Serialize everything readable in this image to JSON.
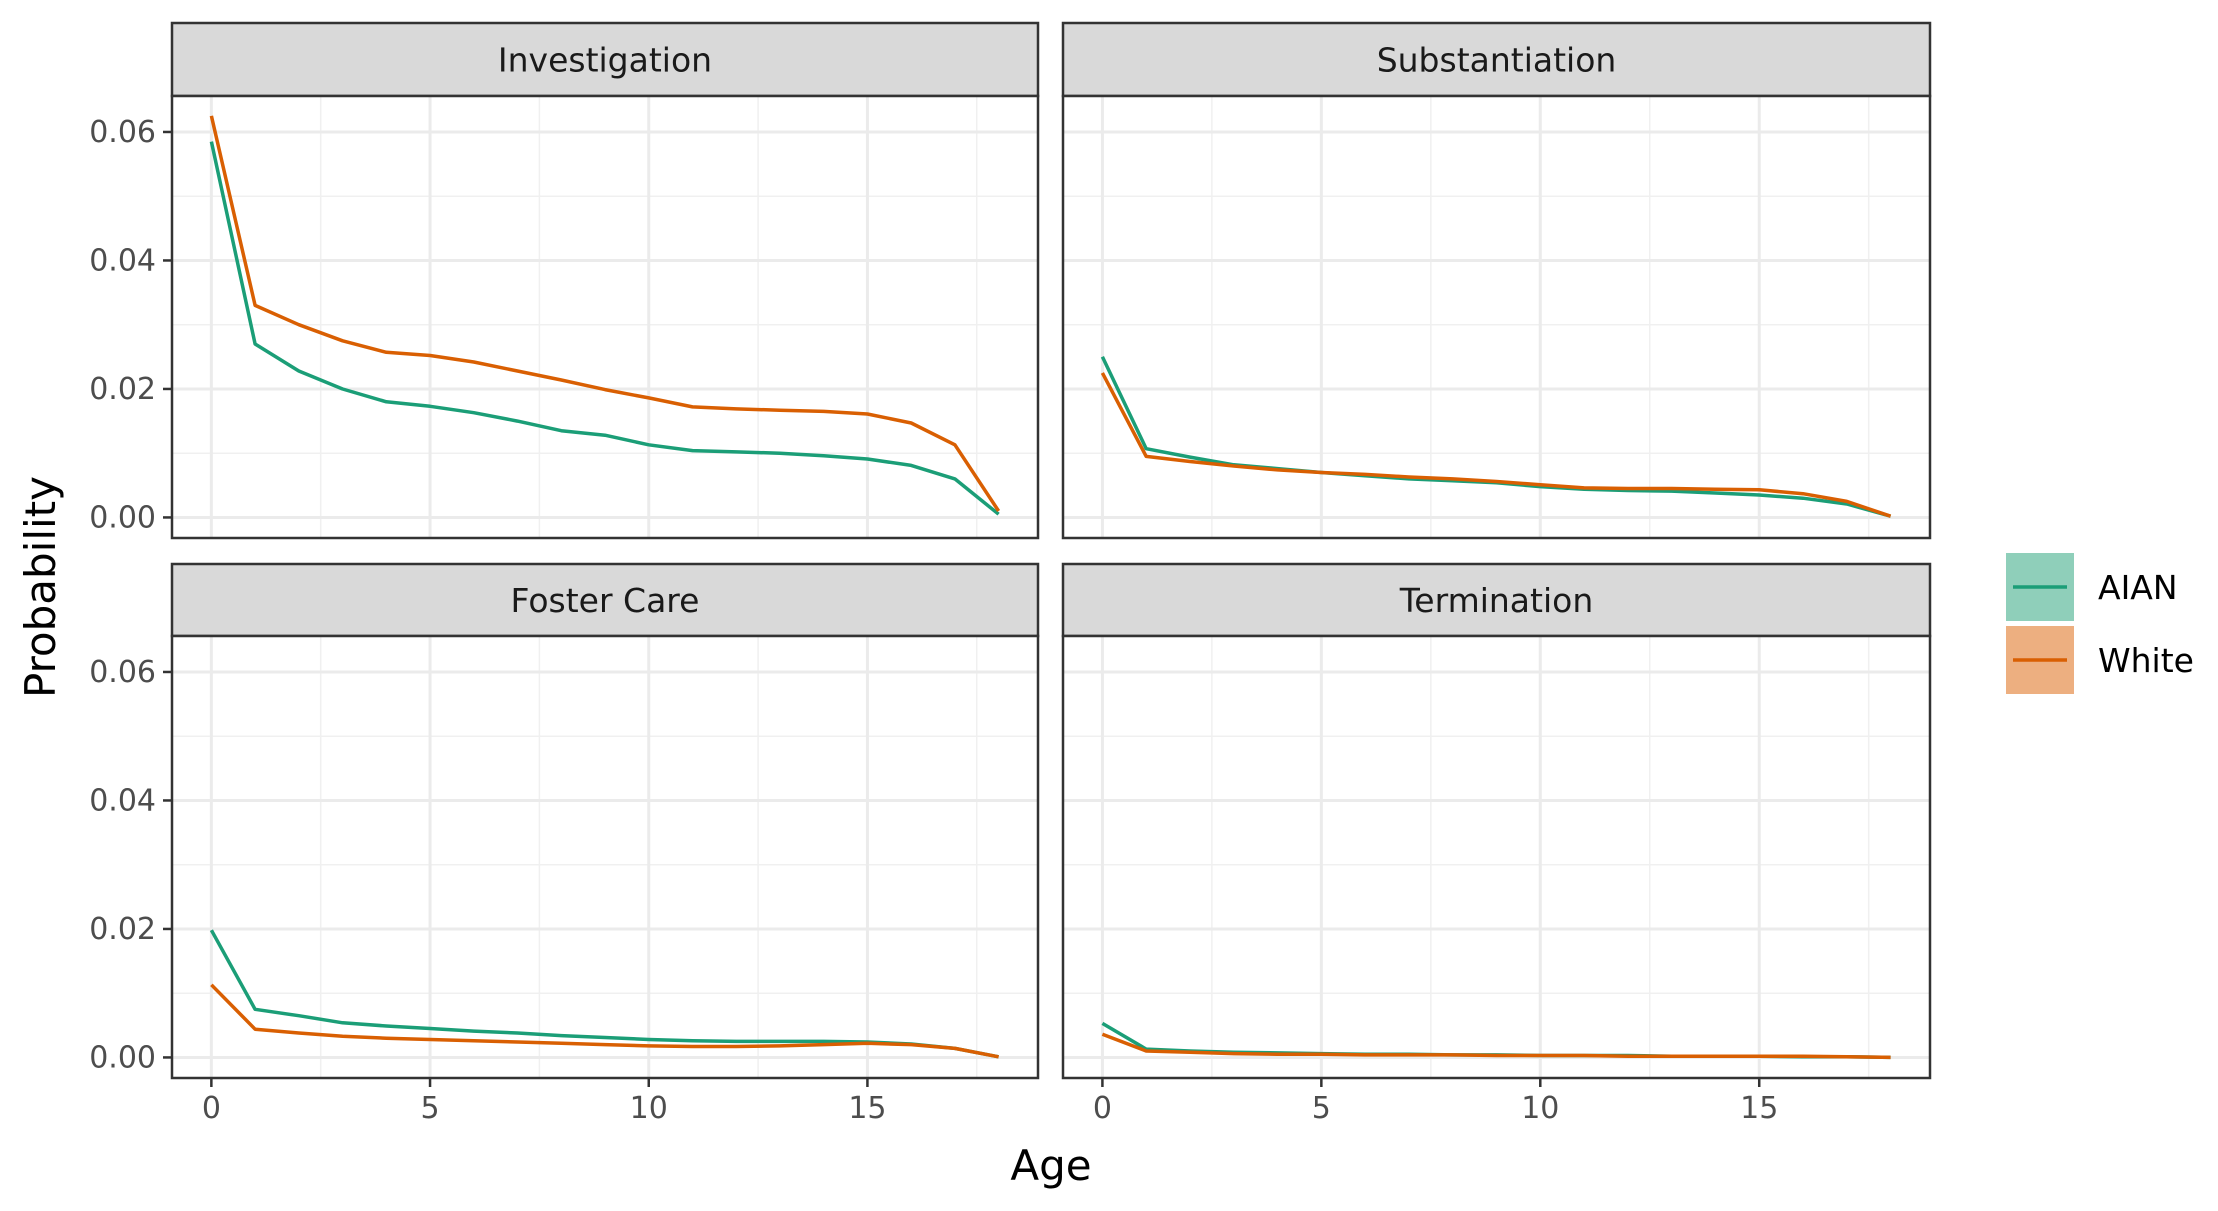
{
  "chart_data": {
    "type": "line",
    "facet_layout": "2x2",
    "xlabel": "Age",
    "ylabel": "Probability",
    "xlim": [
      -0.9,
      18.9
    ],
    "ylim": [
      -0.0032,
      0.0656
    ],
    "x_ticks": [
      0,
      5,
      10,
      15
    ],
    "y_ticks": [
      0.0,
      0.02,
      0.04,
      0.06
    ],
    "y_tick_labels": [
      "0.00",
      "0.02",
      "0.04",
      "0.06"
    ],
    "grid": true,
    "legend": {
      "position": "right",
      "entries": [
        {
          "label": "AIAN",
          "color": "#1b9e77",
          "fill": "#8fcfba"
        },
        {
          "label": "White",
          "color": "#d95f02",
          "fill": "#edaf80"
        }
      ]
    },
    "x": [
      0,
      1,
      2,
      3,
      4,
      5,
      6,
      7,
      8,
      9,
      10,
      11,
      12,
      13,
      14,
      15,
      16,
      17,
      18
    ],
    "panels": [
      {
        "title": "Investigation",
        "series": [
          {
            "name": "AIAN",
            "values": [
              0.0585,
              0.027,
              0.0228,
              0.02,
              0.018,
              0.0173,
              0.0163,
              0.015,
              0.0135,
              0.0128,
              0.0113,
              0.0104,
              0.0102,
              0.01,
              0.0096,
              0.0091,
              0.0081,
              0.006,
              0.0005
            ]
          },
          {
            "name": "White",
            "values": [
              0.0625,
              0.033,
              0.03,
              0.0275,
              0.0257,
              0.0252,
              0.0242,
              0.0228,
              0.0214,
              0.0199,
              0.0186,
              0.0172,
              0.0169,
              0.0167,
              0.0165,
              0.0161,
              0.0147,
              0.0113,
              0.001
            ]
          }
        ]
      },
      {
        "title": "Substantiation",
        "series": [
          {
            "name": "AIAN",
            "values": [
              0.025,
              0.0107,
              0.0094,
              0.0082,
              0.0076,
              0.007,
              0.0065,
              0.006,
              0.0057,
              0.0054,
              0.0048,
              0.0044,
              0.0042,
              0.0041,
              0.0038,
              0.0035,
              0.003,
              0.0021,
              0.0002
            ]
          },
          {
            "name": "White",
            "values": [
              0.0225,
              0.0095,
              0.0087,
              0.008,
              0.0074,
              0.007,
              0.0067,
              0.0063,
              0.006,
              0.0056,
              0.0051,
              0.0046,
              0.0045,
              0.0045,
              0.0044,
              0.0043,
              0.0037,
              0.0025,
              0.0002
            ]
          }
        ]
      },
      {
        "title": "Foster Care",
        "series": [
          {
            "name": "AIAN",
            "values": [
              0.0198,
              0.0075,
              0.0065,
              0.0054,
              0.0049,
              0.0045,
              0.0041,
              0.0038,
              0.0034,
              0.0031,
              0.0028,
              0.0026,
              0.0025,
              0.0025,
              0.0025,
              0.0024,
              0.0021,
              0.0014,
              0.0001
            ]
          },
          {
            "name": "White",
            "values": [
              0.0113,
              0.0044,
              0.0038,
              0.0033,
              0.003,
              0.0028,
              0.0026,
              0.0024,
              0.0022,
              0.002,
              0.0018,
              0.0017,
              0.0017,
              0.0018,
              0.002,
              0.0022,
              0.002,
              0.0014,
              0.0001
            ]
          }
        ]
      },
      {
        "title": "Termination",
        "series": [
          {
            "name": "AIAN",
            "values": [
              0.0053,
              0.0013,
              0.001,
              0.0008,
              0.0007,
              0.0006,
              0.0005,
              0.0005,
              0.0004,
              0.0004,
              0.0003,
              0.0003,
              0.0003,
              0.0002,
              0.0002,
              0.0002,
              0.0001,
              0.0001,
              0.0
            ]
          },
          {
            "name": "White",
            "values": [
              0.0036,
              0.001,
              0.0008,
              0.0006,
              0.0005,
              0.0005,
              0.0004,
              0.0004,
              0.0004,
              0.0003,
              0.0003,
              0.0003,
              0.0002,
              0.0002,
              0.0002,
              0.0002,
              0.0002,
              0.0001,
              0.0
            ]
          }
        ]
      }
    ]
  }
}
